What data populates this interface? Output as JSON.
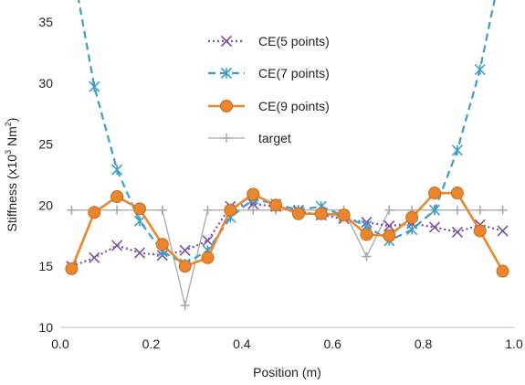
{
  "chart_data": {
    "type": "line",
    "xlabel": "Position (m)",
    "ylabel_main": "Stiffness (x10",
    "ylabel_sup": "3",
    "ylabel_tail": " Nm",
    "ylabel_sup2": "2",
    "ylabel_end": ")",
    "xlim": [
      0,
      1.0
    ],
    "ylim": [
      10,
      35
    ],
    "grid": false,
    "legend_position": "top-center",
    "xticks": [
      {
        "value": 0,
        "label": "0.0"
      },
      {
        "value": 0.2,
        "label": "0.2"
      },
      {
        "value": 0.4,
        "label": "0.4"
      },
      {
        "value": 0.6,
        "label": "0.6"
      },
      {
        "value": 0.8,
        "label": "0.8"
      },
      {
        "value": 1.0,
        "label": "1.0"
      }
    ],
    "yticks": [
      {
        "value": 10,
        "label": "10"
      },
      {
        "value": 15,
        "label": "15"
      },
      {
        "value": 20,
        "label": "20"
      },
      {
        "value": 25,
        "label": "25"
      },
      {
        "value": 30,
        "label": "30"
      },
      {
        "value": 35,
        "label": "35"
      }
    ],
    "series": [
      {
        "name": "CE(5 points)",
        "color": "#7a4fa3",
        "dash": "dot",
        "marker": "x",
        "x": [
          0.025,
          0.075,
          0.125,
          0.175,
          0.225,
          0.275,
          0.325,
          0.375,
          0.425,
          0.475,
          0.525,
          0.575,
          0.625,
          0.675,
          0.725,
          0.775,
          0.825,
          0.875,
          0.925,
          0.975
        ],
        "y": [
          15.0,
          15.7,
          16.7,
          16.1,
          15.9,
          16.3,
          17.1,
          19.9,
          20.1,
          19.9,
          19.5,
          19.2,
          18.9,
          18.6,
          18.3,
          18.5,
          18.2,
          17.8,
          18.4,
          17.9
        ]
      },
      {
        "name": "CE(7 points)",
        "color": "#3d9dc9",
        "dash": "dash",
        "marker": "asterisk",
        "x": [
          0.025,
          0.075,
          0.125,
          0.175,
          0.225,
          0.275,
          0.325,
          0.375,
          0.425,
          0.475,
          0.525,
          0.575,
          0.625,
          0.675,
          0.725,
          0.775,
          0.825,
          0.875,
          0.925,
          0.975
        ],
        "y": [
          40.0,
          29.7,
          22.9,
          18.7,
          16.2,
          15.2,
          16.3,
          19.0,
          20.5,
          20.1,
          19.6,
          19.9,
          19.1,
          18.3,
          17.1,
          18.0,
          19.6,
          24.5,
          31.1,
          40.0
        ]
      },
      {
        "name": "CE(9 points)",
        "color": "#e8872e",
        "dash": "solid",
        "marker": "circle",
        "x": [
          0.025,
          0.075,
          0.125,
          0.175,
          0.225,
          0.275,
          0.325,
          0.375,
          0.425,
          0.475,
          0.525,
          0.575,
          0.625,
          0.675,
          0.725,
          0.775,
          0.825,
          0.875,
          0.925,
          0.975
        ],
        "y": [
          14.8,
          19.4,
          20.7,
          19.7,
          16.8,
          15.0,
          15.7,
          19.6,
          20.9,
          20.0,
          19.3,
          19.3,
          19.2,
          17.6,
          17.5,
          19.0,
          21.0,
          21.0,
          17.9,
          14.6
        ]
      },
      {
        "name": "target",
        "color": "#a8a8a8",
        "dash": "solid",
        "marker": "plus",
        "x": [
          0.025,
          0.075,
          0.125,
          0.175,
          0.225,
          0.275,
          0.325,
          0.375,
          0.425,
          0.475,
          0.525,
          0.575,
          0.625,
          0.675,
          0.725,
          0.775,
          0.825,
          0.875,
          0.925,
          0.975
        ],
        "y": [
          19.6,
          19.6,
          19.6,
          19.6,
          19.6,
          11.8,
          19.6,
          19.6,
          19.6,
          19.6,
          19.6,
          19.6,
          19.6,
          15.8,
          19.6,
          19.6,
          19.6,
          19.6,
          19.6,
          19.6
        ]
      }
    ]
  }
}
